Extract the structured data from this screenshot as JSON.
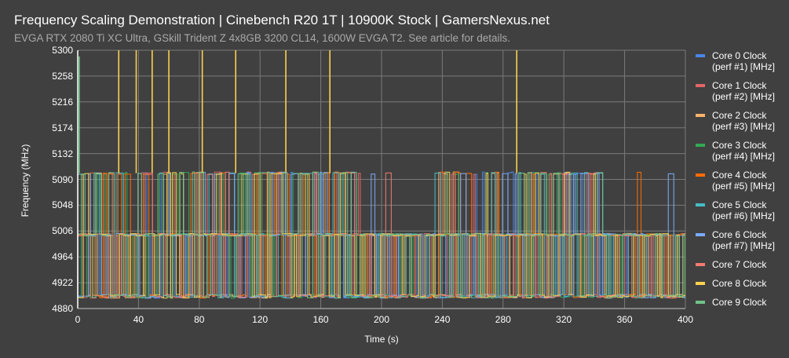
{
  "header": {
    "title": "Frequency Scaling Demonstration | Cinebench R20 1T | 10900K Stock | GamersNexus.net",
    "subtitle": "EVGA RTX 2080 Ti XC Ultra, GSkill Trident Z 4x8GB 3200 CL14, 1600W EVGA T2. See article for details."
  },
  "chart_data": {
    "type": "line",
    "title": "Frequency Scaling Demonstration | Cinebench R20 1T | 10900K Stock | GamersNexus.net",
    "subtitle": "EVGA RTX 2080 Ti XC Ultra, GSkill Trident Z 4x8GB 3200 CL14, 1600W EVGA T2. See article for details.",
    "xlabel": "Time (s)",
    "ylabel": "Frequency (MHz)",
    "xlim": [
      0,
      400
    ],
    "ylim": [
      4880,
      5300
    ],
    "x_ticks": [
      "0",
      "40",
      "80",
      "120",
      "160",
      "200",
      "240",
      "280",
      "320",
      "360",
      "400"
    ],
    "y_ticks": [
      "5300",
      "5258",
      "5216",
      "5174",
      "5132",
      "5090",
      "5048",
      "5006",
      "4964",
      "4922",
      "4880"
    ],
    "grid": true,
    "legend_position": "right",
    "levels_mhz": {
      "boost_high": 5100,
      "boost_mid": 5000,
      "idle_low": 4900,
      "spike": 5300
    },
    "description": "Each core rapidly hops between ~4900, ~5000 and ~5100 MHz as the single-threaded load migrates. 0-180 s and ~235-345 s show frequent 5100 MHz residency; 180-235 s and 345-400 s mostly 4900-5000 MHz. Core 8 spikes to 5300 MHz at several points; Core 9 starts at ~5290 MHz at t=0.",
    "segments": [
      {
        "from": 0,
        "to": 180,
        "high_prob": 0.55
      },
      {
        "from": 180,
        "to": 235,
        "high_prob": 0.04
      },
      {
        "from": 235,
        "to": 345,
        "high_prob": 0.45
      },
      {
        "from": 345,
        "to": 400,
        "high_prob": 0.01
      }
    ],
    "spikes": [
      {
        "series": "Core 8 Clock",
        "t": 27,
        "value": 5300
      },
      {
        "series": "Core 8 Clock",
        "t": 38.5,
        "value": 5300
      },
      {
        "series": "Core 8 Clock",
        "t": 49,
        "value": 5300
      },
      {
        "series": "Core 8 Clock",
        "t": 60,
        "value": 5300
      },
      {
        "series": "Core 8 Clock",
        "t": 82,
        "value": 5300
      },
      {
        "series": "Core 8 Clock",
        "t": 104,
        "value": 5300
      },
      {
        "series": "Core 8 Clock",
        "t": 137,
        "value": 5300
      },
      {
        "series": "Core 8 Clock",
        "t": 166,
        "value": 5300
      },
      {
        "series": "Core 8 Clock",
        "t": 289,
        "value": 5300
      },
      {
        "series": "Core 9 Clock",
        "t": 1,
        "value": 5290
      }
    ],
    "series": [
      {
        "name": "Core 0 Clock (perf #1) [MHz]",
        "color": "#4a86e8"
      },
      {
        "name": "Core 1 Clock (perf #2) [MHz]",
        "color": "#e06666"
      },
      {
        "name": "Core 2 Clock (perf #3) [MHz]",
        "color": "#f6b26b"
      },
      {
        "name": "Core 3 Clock (perf #4) [MHz]",
        "color": "#34a853"
      },
      {
        "name": "Core 4 Clock (perf #5) [MHz]",
        "color": "#ff6d01"
      },
      {
        "name": "Core 5 Clock (perf #6) [MHz]",
        "color": "#46bdc6"
      },
      {
        "name": "Core 6 Clock (perf #7) [MHz]",
        "color": "#7baaf7"
      },
      {
        "name": "Core 7 Clock",
        "color": "#f07b72"
      },
      {
        "name": "Core 8 Clock",
        "color": "#fcd04f"
      },
      {
        "name": "Core 9 Clock",
        "color": "#71c287"
      }
    ]
  },
  "legend": {
    "items": [
      {
        "line1": "Core 0 Clock",
        "line2": "(perf #1) [MHz]",
        "color": "#4a86e8"
      },
      {
        "line1": "Core 1 Clock",
        "line2": "(perf #2) [MHz]",
        "color": "#e06666"
      },
      {
        "line1": "Core 2 Clock",
        "line2": "(perf #3) [MHz]",
        "color": "#f6b26b"
      },
      {
        "line1": "Core 3 Clock",
        "line2": "(perf #4) [MHz]",
        "color": "#34a853"
      },
      {
        "line1": "Core 4 Clock",
        "line2": "(perf #5) [MHz]",
        "color": "#ff6d01"
      },
      {
        "line1": "Core 5 Clock",
        "line2": "(perf #6) [MHz]",
        "color": "#46bdc6"
      },
      {
        "line1": "Core 6 Clock",
        "line2": "(perf #7) [MHz]",
        "color": "#7baaf7"
      },
      {
        "line1": "Core 7 Clock",
        "line2": "",
        "color": "#f07b72"
      },
      {
        "line1": "Core 8 Clock",
        "line2": "",
        "color": "#fcd04f"
      },
      {
        "line1": "Core 9 Clock",
        "line2": "",
        "color": "#71c287"
      }
    ]
  }
}
